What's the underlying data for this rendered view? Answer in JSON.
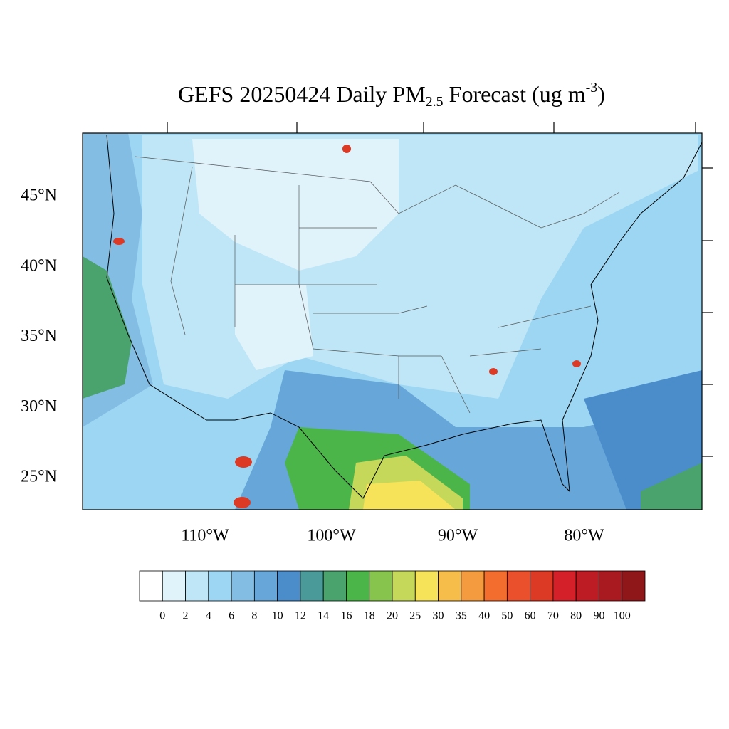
{
  "map": {
    "title": {
      "parts": [
        "GEFS 20250424 Daily PM",
        "2.5",
        " Forecast (ug m",
        "-3",
        ")"
      ]
    },
    "lat_labels": [
      "45°N",
      "40°N",
      "35°N",
      "30°N",
      "25°N"
    ],
    "lon_labels": [
      "110°W",
      "100°W",
      "90°W",
      "80°W"
    ],
    "colorbar": {
      "levels": [
        0,
        2,
        4,
        6,
        8,
        10,
        12,
        14,
        16,
        18,
        20,
        25,
        30,
        35,
        40,
        50,
        60,
        70,
        80,
        90,
        100
      ],
      "colors": [
        "#ffffff",
        "#e0f3fb",
        "#bfe6f7",
        "#9dd6f2",
        "#84bde3",
        "#66a6d9",
        "#4b8dcb",
        "#4a9a9a",
        "#4aa36c",
        "#4cb54a",
        "#86c44e",
        "#c5d85a",
        "#f7e35a",
        "#f7bd4a",
        "#f59b3f",
        "#f26d2e",
        "#e9502b",
        "#dd3a26",
        "#d42028",
        "#be1c24",
        "#a81a1f",
        "#8f1619"
      ]
    }
  }
}
